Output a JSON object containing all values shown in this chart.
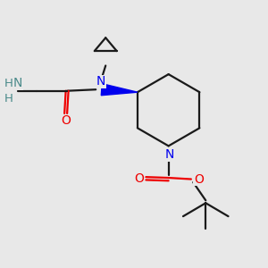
{
  "background_color": "#e8e8e8",
  "bond_color": "#1a1a1a",
  "nitrogen_color": "#0000ee",
  "oxygen_color": "#ee0000",
  "amino_color": "#4a8a8a",
  "figsize": [
    3.0,
    3.0
  ],
  "dpi": 100,
  "xlim": [
    0,
    10
  ],
  "ylim": [
    0,
    10
  ]
}
